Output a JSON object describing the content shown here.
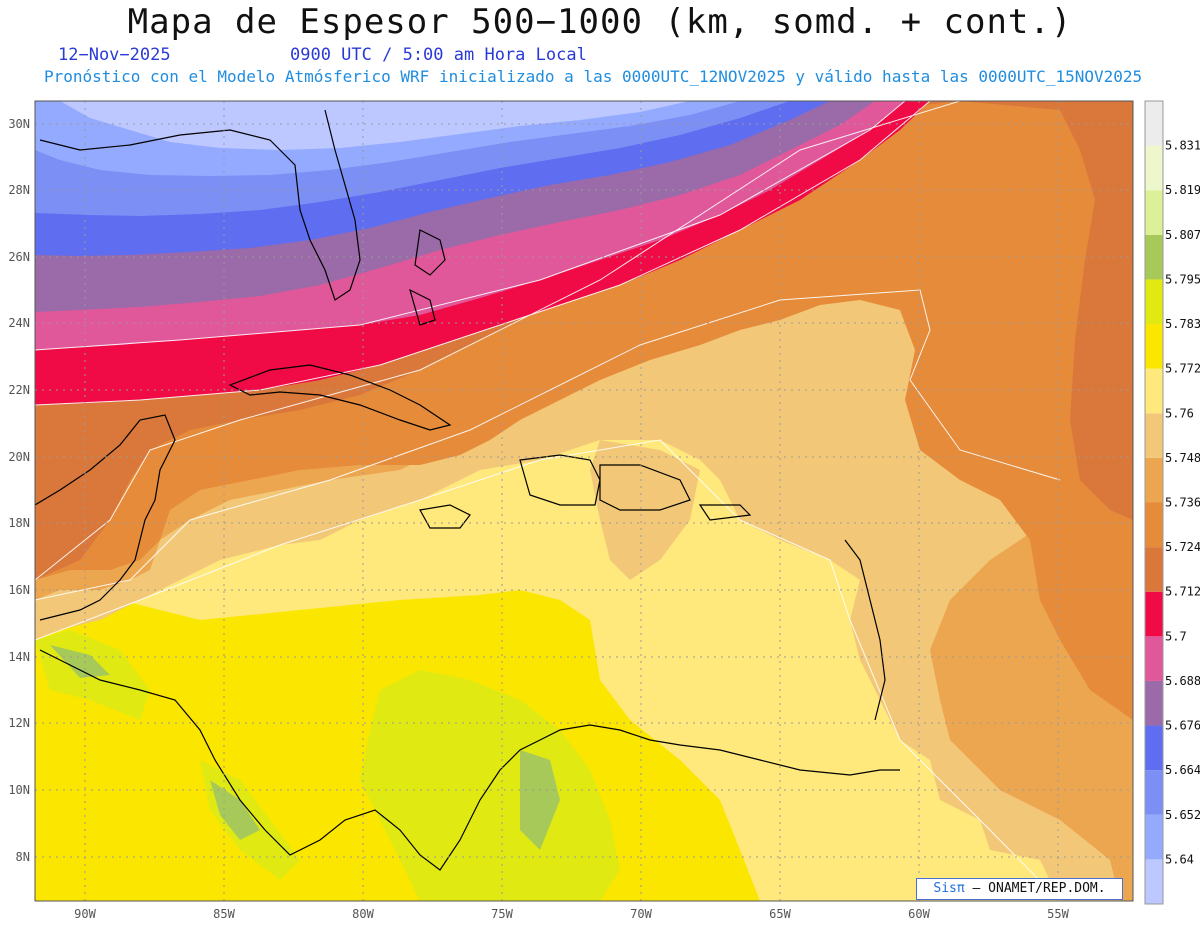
{
  "title": "Mapa de Espesor 500−1000 (km, somd. + cont.)",
  "date": "12−Nov−2025",
  "time": "0900 UTC / 5:00 am Hora Local",
  "info": "Pronóstico con el Modelo Atmósferico WRF inicializado a las 0000UTC_12NOV2025 y válido hasta las  0000UTC_15NOV2025",
  "lat_labels": [
    "30N",
    "28N",
    "26N",
    "24N",
    "22N",
    "20N",
    "18N",
    "16N",
    "14N",
    "12N",
    "10N",
    "8N"
  ],
  "lon_labels": [
    "90W",
    "85W",
    "80W",
    "75W",
    "70W",
    "65W",
    "60W",
    "55W"
  ],
  "colorbar": {
    "labels": [
      "5.831",
      "5.819",
      "5.807",
      "5.795",
      "5.783",
      "5.772",
      "5.76",
      "5.748",
      "5.736",
      "5.724",
      "5.712",
      "5.7",
      "5.688",
      "5.676",
      "5.664",
      "5.652",
      "5.64"
    ],
    "colors": [
      "#bcc8ff",
      "#94aaff",
      "#7b8ff5",
      "#5f6ef0",
      "#9b6aa8",
      "#e0589a",
      "#f00a46",
      "#d9783a",
      "#e58b3a",
      "#eda650",
      "#f2c878",
      "#ffe87c",
      "#fbe600",
      "#e0ea12",
      "#a6c95a",
      "#dcf098",
      "#eef7cc",
      "#ececec"
    ]
  },
  "credit": {
    "brand": "Sisπ",
    "text": " – ONAMET/REP.DOM."
  }
}
